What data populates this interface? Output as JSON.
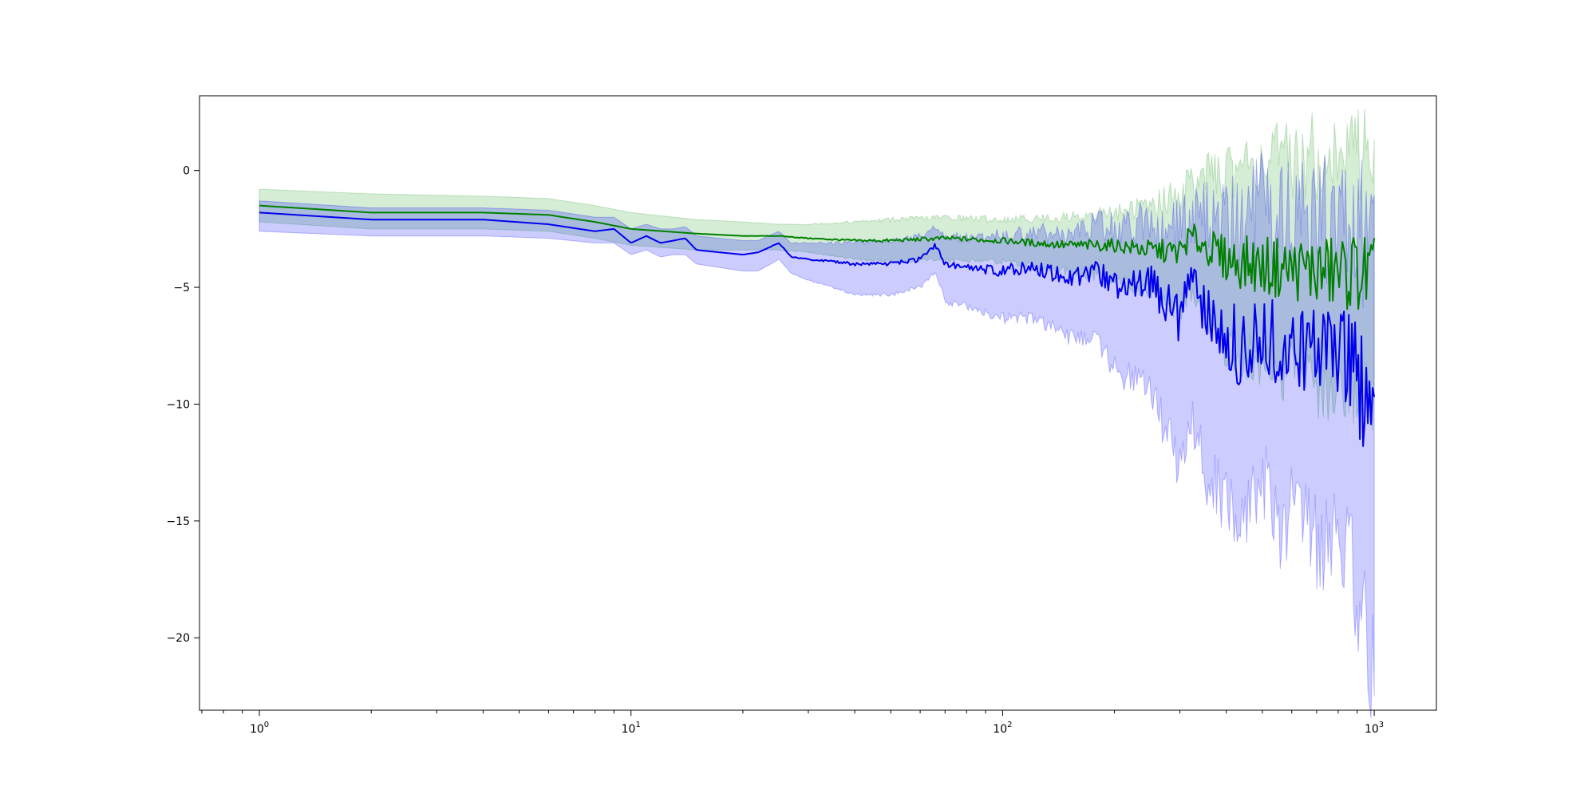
{
  "chart_data": {
    "type": "line",
    "title": "",
    "xlabel": "",
    "ylabel": "",
    "xscale": "log",
    "xlim": [
      0.69,
      1470
    ],
    "ylim": [
      -23.1,
      3.2
    ],
    "grid": false,
    "legend": "none",
    "x_ticks": [
      {
        "base": "10",
        "exp": "0",
        "value": 1
      },
      {
        "base": "10",
        "exp": "1",
        "value": 10
      },
      {
        "base": "10",
        "exp": "2",
        "value": 100
      },
      {
        "base": "10",
        "exp": "3",
        "value": 1000
      }
    ],
    "y_ticks": [
      {
        "label": "0",
        "value": 0
      },
      {
        "label": "−5",
        "value": -5
      },
      {
        "label": "−10",
        "value": -10
      },
      {
        "label": "−15",
        "value": -15
      },
      {
        "label": "−20",
        "value": -20
      }
    ],
    "series": [
      {
        "color": "#008000",
        "band_color": "#2ca02c",
        "x": [
          1,
          2,
          4,
          6,
          8,
          10,
          15,
          20,
          25,
          30,
          40,
          50,
          70,
          100,
          150,
          200,
          250,
          300,
          320,
          400,
          500,
          600,
          700,
          800,
          900,
          1000
        ],
        "mean": [
          -1.5,
          -1.8,
          -1.8,
          -1.9,
          -2.2,
          -2.5,
          -2.7,
          -2.8,
          -2.8,
          -2.9,
          -3.0,
          -3.0,
          -2.9,
          -3.0,
          -3.2,
          -3.2,
          -3.4,
          -3.5,
          -2.8,
          -3.8,
          -4.1,
          -4.2,
          -4.3,
          -4.4,
          -4.3,
          -4.6
        ],
        "upper": [
          -0.8,
          -1.0,
          -1.1,
          -1.2,
          -1.5,
          -1.8,
          -2.1,
          -2.2,
          -2.3,
          -2.3,
          -2.2,
          -2.1,
          -2.0,
          -2.1,
          -2.0,
          -1.8,
          -1.5,
          -1.0,
          -0.5,
          0.0,
          0.5,
          0.3,
          0.8,
          0.5,
          1.0,
          0.8
        ],
        "lower": [
          -2.2,
          -2.5,
          -2.5,
          -2.6,
          -2.9,
          -3.2,
          -3.4,
          -3.4,
          -3.4,
          -3.5,
          -3.8,
          -3.9,
          -3.8,
          -3.9,
          -4.3,
          -4.6,
          -5.3,
          -6.0,
          -5.0,
          -7.6,
          -8.5,
          -8.7,
          -9.3,
          -9.0,
          -9.6,
          -9.8
        ]
      },
      {
        "color": "#0000ee",
        "band_color": "#0000ff",
        "x": [
          1,
          2,
          4,
          6,
          8,
          9,
          10,
          11,
          12,
          13,
          14,
          15,
          20,
          22,
          25,
          27,
          30,
          35,
          40,
          50,
          60,
          66,
          70,
          80,
          100,
          120,
          150,
          180,
          200,
          250,
          280,
          300,
          320,
          350,
          400,
          450,
          500,
          550,
          600,
          700,
          800,
          900,
          950,
          1000
        ],
        "mean": [
          -1.8,
          -2.1,
          -2.1,
          -2.3,
          -2.6,
          -2.5,
          -3.1,
          -2.8,
          -3.1,
          -3.0,
          -2.9,
          -3.4,
          -3.6,
          -3.5,
          -3.1,
          -3.7,
          -3.8,
          -3.9,
          -4.0,
          -4.0,
          -3.8,
          -3.2,
          -4.0,
          -4.2,
          -4.3,
          -4.1,
          -4.6,
          -4.3,
          -4.9,
          -4.8,
          -5.8,
          -6.4,
          -4.8,
          -6.0,
          -7.0,
          -7.8,
          -6.5,
          -8.0,
          -7.5,
          -8.2,
          -7.5,
          -8.5,
          -9.3,
          -10.8
        ],
        "upper": [
          -1.3,
          -1.6,
          -1.6,
          -1.7,
          -2.0,
          -2.0,
          -2.5,
          -2.3,
          -2.5,
          -2.5,
          -2.4,
          -2.8,
          -3.0,
          -3.0,
          -2.6,
          -3.1,
          -3.1,
          -3.1,
          -3.1,
          -3.0,
          -2.8,
          -2.4,
          -2.8,
          -2.9,
          -2.8,
          -2.6,
          -2.8,
          -2.3,
          -2.5,
          -2.2,
          -2.6,
          -2.6,
          -2.0,
          -2.0,
          -2.2,
          -2.4,
          -1.0,
          -1.8,
          -2.0,
          -2.1,
          -2.0,
          -2.3,
          -2.5,
          -2.6
        ],
        "lower": [
          -2.6,
          -2.8,
          -2.8,
          -2.9,
          -3.1,
          -3.1,
          -3.6,
          -3.4,
          -3.7,
          -3.6,
          -3.6,
          -4.0,
          -4.3,
          -4.3,
          -3.8,
          -4.4,
          -4.7,
          -5.0,
          -5.3,
          -5.3,
          -5.0,
          -4.3,
          -5.6,
          -5.8,
          -6.3,
          -6.3,
          -7.1,
          -7.3,
          -8.5,
          -9.4,
          -11.5,
          -12.7,
          -10.5,
          -12.8,
          -14.2,
          -14.8,
          -12.8,
          -15.8,
          -14.5,
          -16.0,
          -15.5,
          -18.0,
          -20.0,
          -21.8
        ]
      }
    ]
  }
}
